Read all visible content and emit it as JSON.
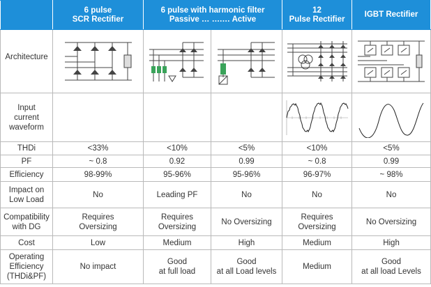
{
  "header": {
    "col1": {
      "line1": "6 pulse",
      "line2": "SCR Rectifier"
    },
    "col23": {
      "line1": "6 pulse with harmonic filter",
      "line2": "Passive  … ….…  Active"
    },
    "col4": {
      "line1": "12",
      "line2": "Pulse Rectifier"
    },
    "col5": {
      "line1": "IGBT Rectifier"
    }
  },
  "rows": {
    "architecture": {
      "label": "Architecture"
    },
    "waveform": {
      "label_l1": "Input",
      "label_l2": "current",
      "label_l3": "waveform"
    },
    "thdi": {
      "label": "THDi",
      "values": [
        "<33%",
        "<10%",
        "<5%",
        "<10%",
        "<5%"
      ]
    },
    "pf": {
      "label": "PF",
      "values": [
        "~ 0.8",
        "0.92",
        "0.99",
        "~ 0.8",
        "0.99"
      ]
    },
    "efficiency": {
      "label": "Efficiency",
      "values": [
        "98-99%",
        "95-96%",
        "95-96%",
        "96-97%",
        "~ 98%"
      ]
    },
    "impact": {
      "label_l1": "Impact on",
      "label_l2": "Low Load",
      "values": [
        "No",
        "Leading PF",
        "No",
        "No",
        "No"
      ]
    },
    "compat": {
      "label_l1": "Compatibility",
      "label_l2": "with DG",
      "values": [
        {
          "l1": "Requires",
          "l2": "Oversizing"
        },
        {
          "l1": "Requires",
          "l2": "Oversizing"
        },
        {
          "l1": "No Oversizing",
          "l2": ""
        },
        {
          "l1": "Requires",
          "l2": "Oversizing"
        },
        {
          "l1": "No Oversizing",
          "l2": ""
        }
      ]
    },
    "cost": {
      "label": "Cost",
      "values": [
        "Low",
        "Medium",
        "High",
        "Medium",
        "High"
      ]
    },
    "opeff": {
      "label_l1": "Operating",
      "label_l2": "Efficiency",
      "label_l3": "(THDi&PF)",
      "values": [
        {
          "l1": "No impact",
          "l2": ""
        },
        {
          "l1": "Good",
          "l2": "at full load"
        },
        {
          "l1": "Good",
          "l2": "at all Load levels"
        },
        {
          "l1": "Medium",
          "l2": ""
        },
        {
          "l1": "Good",
          "l2": "at all load Levels"
        }
      ]
    }
  },
  "colors": {
    "header_bg": "#1e8fd9",
    "grid": "#b9b9b9",
    "text": "#333333",
    "diagram_green": "#3aa35a"
  },
  "icons": [
    "scr-rectifier-diagram-icon",
    "passive-filter-diagram-icon",
    "active-filter-diagram-icon",
    "12-pulse-diagram-icon",
    "igbt-diagram-icon",
    "distorted-waveform-icon",
    "sine-waveform-icon"
  ]
}
